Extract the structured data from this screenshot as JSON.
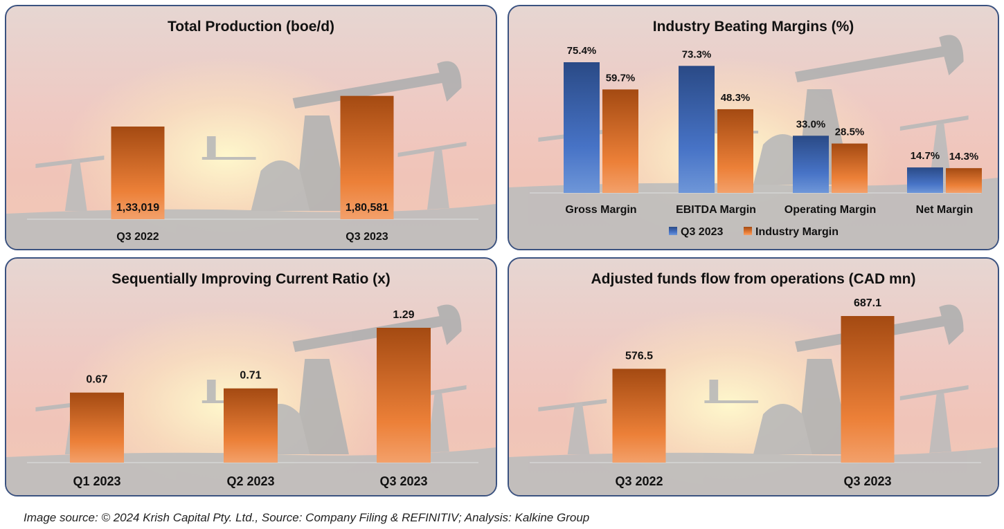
{
  "chart_data": [
    {
      "type": "bar",
      "title": "Total Production (boe/d)",
      "categories": [
        "Q3 2022",
        "Q3 2023"
      ],
      "values": [
        133019,
        180581
      ],
      "data_labels": [
        "1,33,019",
        "1,80,581"
      ],
      "xlabel": "",
      "ylabel": "",
      "ylim": [
        0,
        240000
      ],
      "grid": false
    },
    {
      "type": "bar",
      "title": "Industry Beating Margins (%)",
      "categories": [
        "Gross Margin",
        "EBITDA Margin",
        "Operating Margin",
        "Net Margin"
      ],
      "series": [
        {
          "name": "Q3 2023",
          "values": [
            75.4,
            73.3,
            33.0,
            14.7
          ],
          "data_labels": [
            "75.4%",
            "73.3%",
            "33.0%",
            "14.7%"
          ],
          "color": "#3f6bbf"
        },
        {
          "name": "Industry Margin",
          "values": [
            59.7,
            48.3,
            28.5,
            14.3
          ],
          "data_labels": [
            "59.7%",
            "48.3%",
            "28.5%",
            "14.3%"
          ],
          "color": "#e07a30"
        }
      ],
      "legend": "bottom",
      "ylim": [
        0,
        100
      ],
      "grid": false
    },
    {
      "type": "bar",
      "title": "Sequentially Improving Current Ratio (x)",
      "categories": [
        "Q1 2023",
        "Q2 2023",
        "Q3 2023"
      ],
      "values": [
        0.67,
        0.71,
        1.29
      ],
      "data_labels": [
        "0.67",
        "0.71",
        "1.29"
      ],
      "ylim": [
        0,
        1.6
      ],
      "grid": false
    },
    {
      "type": "bar",
      "title": "Adjusted funds flow from operations (CAD mn)",
      "categories": [
        "Q3 2022",
        "Q3 2023"
      ],
      "values": [
        576.5,
        687.1
      ],
      "data_labels": [
        "576.5",
        "687.1"
      ],
      "ylim": [
        380,
        800
      ],
      "grid": false
    }
  ],
  "footer": "Image source: © 2024 Krish Capital Pty. Ltd., Source: Company Filing & REFINITIV; Analysis: Kalkine Group",
  "colors": {
    "orange_dark": "#a44a12",
    "orange_light": "#f3a06a",
    "blue_dark": "#2a4a86",
    "blue_light": "#6e96d8",
    "border": "#3a5280"
  }
}
